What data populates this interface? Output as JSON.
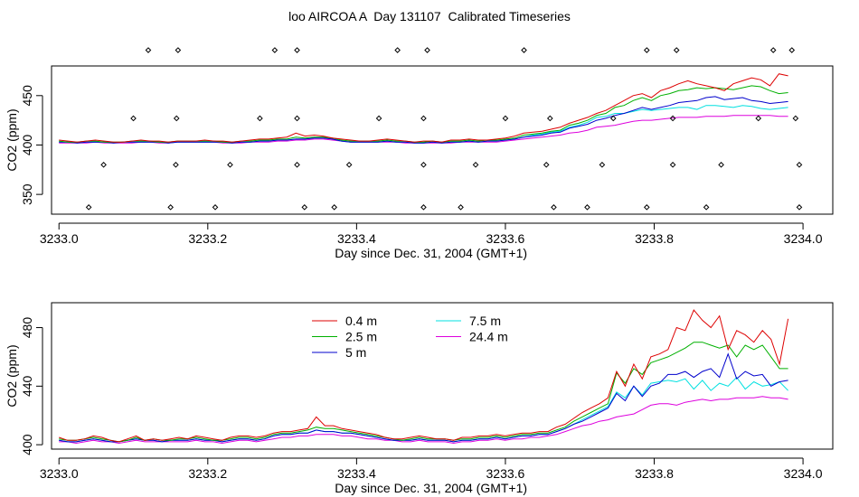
{
  "title": "loo AIRCOA A  Day 131107  Calibrated Timeseries",
  "colors": {
    "0.4 m": "#dd0000",
    "2.5 m": "#00b000",
    "5 m": "#0000cc",
    "7.5 m": "#00e0e0",
    "24.4 m": "#dd00dd"
  },
  "chart_data": [
    {
      "type": "line",
      "id": "overview",
      "xlabel": "Day since Dec. 31, 2004 (GMT+1)",
      "ylabel": "CO2 (ppm)",
      "xticks": [
        "3233.0",
        "3233.2",
        "3233.4",
        "3233.6",
        "3233.8",
        "3234.0"
      ],
      "yticks": [
        "350",
        "400",
        "450"
      ],
      "xlim": [
        3232.99,
        3234.04
      ],
      "ylim": [
        330,
        480
      ],
      "series": [
        {
          "name": "0.4 m",
          "values": [
            405,
            404,
            403,
            404,
            405,
            404,
            403,
            403,
            404,
            405,
            404,
            404,
            403,
            404,
            404,
            404,
            405,
            404,
            404,
            403,
            404,
            405,
            406,
            406,
            407,
            408,
            412,
            409,
            410,
            409,
            407,
            406,
            405,
            404,
            404,
            405,
            406,
            405,
            404,
            403,
            404,
            404,
            403,
            405,
            405,
            406,
            405,
            405,
            406,
            407,
            409,
            412,
            413,
            414,
            416,
            418,
            422,
            425,
            428,
            432,
            435,
            440,
            445,
            450,
            452,
            448,
            455,
            458,
            462,
            465,
            462,
            460,
            458,
            455,
            462,
            465,
            468,
            466,
            460,
            472,
            470
          ]
        },
        {
          "name": "2.5 m",
          "values": [
            404,
            403,
            403,
            404,
            404,
            403,
            403,
            403,
            404,
            404,
            404,
            403,
            403,
            404,
            404,
            404,
            404,
            404,
            403,
            403,
            404,
            404,
            405,
            405,
            406,
            406,
            408,
            407,
            408,
            408,
            407,
            405,
            404,
            404,
            404,
            404,
            405,
            404,
            404,
            403,
            403,
            404,
            403,
            404,
            404,
            405,
            404,
            405,
            405,
            406,
            407,
            410,
            411,
            412,
            414,
            415,
            420,
            422,
            425,
            430,
            432,
            438,
            440,
            445,
            448,
            445,
            450,
            452,
            455,
            456,
            458,
            457,
            458,
            457,
            456,
            458,
            460,
            459,
            455,
            452,
            453
          ]
        },
        {
          "name": "5 m",
          "values": [
            403,
            403,
            402,
            403,
            403,
            403,
            402,
            403,
            403,
            403,
            403,
            403,
            402,
            403,
            403,
            403,
            403,
            403,
            403,
            402,
            403,
            403,
            404,
            404,
            405,
            405,
            406,
            406,
            407,
            407,
            406,
            404,
            403,
            403,
            403,
            403,
            404,
            403,
            403,
            402,
            402,
            403,
            402,
            403,
            403,
            404,
            403,
            404,
            404,
            405,
            406,
            408,
            409,
            410,
            412,
            413,
            417,
            419,
            421,
            425,
            427,
            430,
            432,
            435,
            438,
            436,
            438,
            440,
            443,
            444,
            445,
            448,
            449,
            446,
            447,
            448,
            445,
            444,
            442,
            443,
            444
          ]
        },
        {
          "name": "7.5 m",
          "values": [
            403,
            403,
            402,
            403,
            403,
            403,
            402,
            403,
            403,
            403,
            403,
            403,
            402,
            403,
            403,
            403,
            403,
            403,
            403,
            402,
            403,
            403,
            404,
            404,
            405,
            405,
            406,
            406,
            407,
            407,
            406,
            404,
            403,
            403,
            403,
            403,
            404,
            403,
            403,
            402,
            402,
            403,
            402,
            403,
            403,
            404,
            403,
            404,
            404,
            405,
            406,
            408,
            410,
            411,
            413,
            414,
            418,
            420,
            423,
            428,
            429,
            432,
            432,
            434,
            436,
            435,
            436,
            437,
            438,
            438,
            436,
            440,
            440,
            439,
            438,
            440,
            439,
            437,
            436,
            437,
            438
          ]
        },
        {
          "name": "24.4 m",
          "values": [
            402,
            402,
            402,
            402,
            403,
            402,
            402,
            402,
            402,
            403,
            403,
            402,
            402,
            403,
            403,
            403,
            403,
            403,
            402,
            402,
            402,
            403,
            403,
            403,
            404,
            404,
            405,
            405,
            406,
            406,
            405,
            404,
            403,
            403,
            403,
            403,
            403,
            403,
            402,
            402,
            402,
            402,
            402,
            402,
            403,
            403,
            403,
            403,
            403,
            404,
            405,
            406,
            407,
            408,
            409,
            410,
            412,
            413,
            415,
            418,
            419,
            420,
            422,
            424,
            425,
            425,
            426,
            427,
            428,
            428,
            428,
            429,
            429,
            429,
            430,
            430,
            430,
            430,
            430,
            429,
            429
          ]
        }
      ],
      "flag_points": {
        "x": [
          3233.04,
          3233.06,
          3233.1,
          3233.12,
          3233.15,
          3233.157,
          3233.158,
          3233.16,
          3233.21,
          3233.23,
          3233.27,
          3233.29,
          3233.32,
          3233.32,
          3233.32,
          3233.33,
          3233.37,
          3233.39,
          3233.43,
          3233.455,
          3233.49,
          3233.49,
          3233.49,
          3233.495,
          3233.54,
          3233.56,
          3233.6,
          3233.625,
          3233.655,
          3233.66,
          3233.665,
          3233.71,
          3233.73,
          3233.745,
          3233.79,
          3233.79,
          3233.825,
          3233.825,
          3233.83,
          3233.87,
          3233.89,
          3233.94,
          3233.96,
          3233.985,
          3233.99,
          3233.995,
          3233.995
        ],
        "y": [
          337,
          380,
          427,
          496,
          337,
          380,
          427,
          496,
          337,
          380,
          427,
          496,
          380,
          427,
          496,
          337,
          337,
          380,
          427,
          496,
          337,
          380,
          427,
          496,
          337,
          380,
          427,
          496,
          380,
          427,
          337,
          337,
          380,
          427,
          496,
          337,
          380,
          427,
          496,
          337,
          380,
          427,
          496,
          496,
          427,
          380,
          337
        ]
      }
    },
    {
      "type": "line",
      "id": "detail",
      "xlabel": "Day since Dec. 31, 2004 (GMT+1)",
      "ylabel": "CO2 (ppm)",
      "xticks": [
        "3233.0",
        "3233.2",
        "3233.4",
        "3233.6",
        "3233.8",
        "3234.0"
      ],
      "yticks": [
        "400",
        "440",
        "480"
      ],
      "xlim": [
        3232.99,
        3234.04
      ],
      "ylim": [
        397,
        497
      ],
      "legend": "top-left",
      "series": [
        {
          "name": "0.4 m",
          "values": [
            405,
            403,
            403,
            404,
            406,
            405,
            403,
            402,
            404,
            406,
            403,
            404,
            403,
            404,
            405,
            404,
            406,
            405,
            404,
            403,
            405,
            406,
            406,
            405,
            406,
            408,
            409,
            409,
            410,
            411,
            419,
            413,
            413,
            411,
            410,
            409,
            408,
            407,
            405,
            404,
            404,
            405,
            406,
            405,
            404,
            404,
            403,
            405,
            405,
            406,
            406,
            407,
            406,
            407,
            408,
            408,
            409,
            409,
            412,
            414,
            418,
            422,
            425,
            428,
            432,
            450,
            440,
            455,
            445,
            460,
            462,
            465,
            480,
            478,
            492,
            485,
            480,
            488,
            465,
            478,
            475,
            470,
            478,
            472,
            455,
            486
          ]
        },
        {
          "name": "2.5 m",
          "values": [
            404,
            403,
            403,
            404,
            405,
            404,
            403,
            402,
            403,
            405,
            403,
            404,
            403,
            403,
            404,
            404,
            405,
            404,
            403,
            403,
            404,
            405,
            405,
            404,
            405,
            407,
            408,
            408,
            409,
            410,
            412,
            411,
            411,
            410,
            409,
            408,
            407,
            406,
            405,
            404,
            403,
            404,
            405,
            404,
            404,
            404,
            403,
            404,
            404,
            405,
            405,
            406,
            405,
            406,
            407,
            407,
            408,
            408,
            410,
            412,
            416,
            419,
            422,
            425,
            428,
            449,
            442,
            452,
            448,
            456,
            458,
            460,
            463,
            466,
            470,
            470,
            468,
            466,
            468,
            460,
            468,
            465,
            468,
            460,
            452,
            452
          ]
        },
        {
          "name": "5 m",
          "values": [
            403,
            402,
            402,
            403,
            404,
            403,
            402,
            402,
            403,
            404,
            403,
            403,
            402,
            403,
            403,
            403,
            404,
            403,
            403,
            402,
            403,
            404,
            404,
            403,
            404,
            406,
            407,
            407,
            408,
            408,
            410,
            409,
            409,
            408,
            408,
            407,
            406,
            405,
            404,
            403,
            403,
            403,
            404,
            403,
            403,
            403,
            402,
            403,
            403,
            404,
            404,
            405,
            404,
            405,
            406,
            406,
            407,
            407,
            409,
            411,
            414,
            416,
            419,
            422,
            425,
            435,
            430,
            440,
            433,
            440,
            442,
            448,
            448,
            450,
            446,
            450,
            452,
            446,
            462,
            445,
            450,
            447,
            448,
            440,
            443,
            444
          ]
        },
        {
          "name": "7.5 m",
          "values": [
            403,
            402,
            402,
            403,
            404,
            403,
            402,
            402,
            403,
            404,
            403,
            403,
            402,
            403,
            403,
            403,
            404,
            403,
            403,
            402,
            403,
            404,
            404,
            403,
            404,
            406,
            407,
            407,
            408,
            408,
            410,
            409,
            409,
            408,
            408,
            407,
            406,
            405,
            404,
            403,
            403,
            403,
            404,
            403,
            403,
            403,
            402,
            403,
            403,
            404,
            404,
            405,
            404,
            405,
            406,
            406,
            407,
            407,
            409,
            411,
            414,
            417,
            420,
            423,
            426,
            436,
            432,
            440,
            434,
            442,
            443,
            444,
            443,
            445,
            438,
            444,
            437,
            442,
            440,
            446,
            438,
            443,
            440,
            441,
            443,
            437
          ]
        },
        {
          "name": "24.4 m",
          "values": [
            402,
            402,
            401,
            402,
            403,
            402,
            402,
            401,
            402,
            403,
            402,
            402,
            402,
            402,
            402,
            402,
            403,
            402,
            402,
            401,
            402,
            403,
            403,
            402,
            403,
            404,
            405,
            405,
            406,
            406,
            407,
            407,
            407,
            406,
            406,
            405,
            404,
            404,
            403,
            403,
            402,
            402,
            403,
            402,
            402,
            402,
            401,
            402,
            402,
            403,
            403,
            404,
            403,
            404,
            404,
            405,
            405,
            406,
            407,
            409,
            411,
            413,
            414,
            416,
            417,
            419,
            420,
            421,
            424,
            427,
            428,
            428,
            427,
            429,
            430,
            431,
            430,
            431,
            431,
            432,
            432,
            432,
            433,
            432,
            432,
            431
          ]
        }
      ]
    }
  ]
}
